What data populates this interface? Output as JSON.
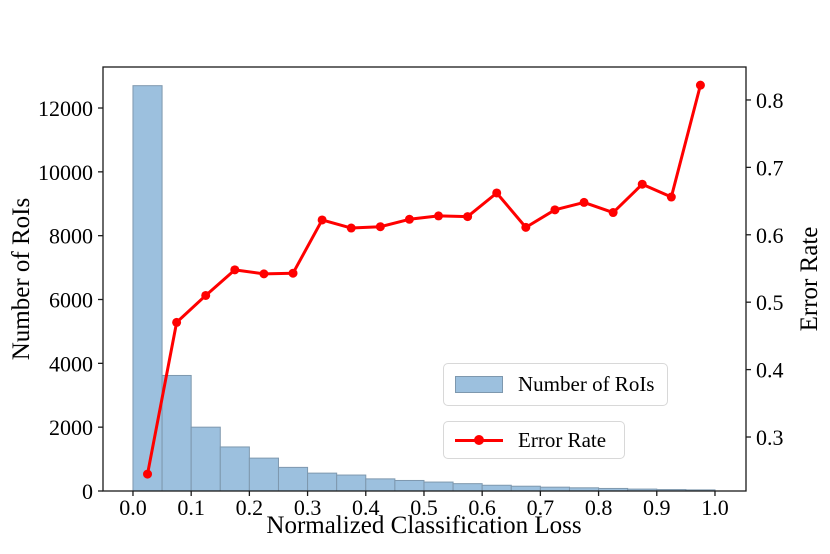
{
  "figure": {
    "xlabel": "Normalized Classification Loss",
    "ylabel_left": "Number of RoIs",
    "ylabel_right": "Error Rate"
  },
  "legend": {
    "hist_label": "Number of RoIs",
    "line_label": "Error Rate"
  },
  "colors": {
    "bar_fill": "#9cc0de",
    "bar_edge": "#7e98ae",
    "line": "#ff0000",
    "spine": "#1a1a1a",
    "tick_text": "#000000",
    "legend_border": "#d8d8d8",
    "background": "#ffffff"
  },
  "chart_data": {
    "type": "bar",
    "subtype": "histogram with overlaid line, dual y-axes",
    "title": "",
    "xlabel": "Normalized Classification Loss",
    "ylabel_left": "Number of RoIs",
    "ylabel_right": "Error Rate",
    "bin_width": 0.05,
    "bin_starts": [
      0.0,
      0.05,
      0.1,
      0.15,
      0.2,
      0.25,
      0.3,
      0.35,
      0.4,
      0.45,
      0.5,
      0.55,
      0.6,
      0.65,
      0.7,
      0.75,
      0.8,
      0.85,
      0.9,
      0.95
    ],
    "bin_centers": [
      0.025,
      0.075,
      0.125,
      0.175,
      0.225,
      0.275,
      0.325,
      0.375,
      0.425,
      0.475,
      0.525,
      0.575,
      0.625,
      0.675,
      0.725,
      0.775,
      0.825,
      0.875,
      0.925,
      0.975
    ],
    "series": [
      {
        "name": "Number of RoIs",
        "type": "bar",
        "axis": "left",
        "values": [
          12700,
          3620,
          2000,
          1380,
          1030,
          740,
          560,
          500,
          380,
          330,
          280,
          230,
          180,
          150,
          120,
          100,
          80,
          60,
          45,
          35
        ]
      },
      {
        "name": "Error Rate",
        "type": "line",
        "axis": "right",
        "marker": "circle",
        "values": [
          0.245,
          0.47,
          0.51,
          0.548,
          0.542,
          0.543,
          0.622,
          0.61,
          0.612,
          0.623,
          0.628,
          0.627,
          0.662,
          0.611,
          0.637,
          0.648,
          0.633,
          0.675,
          0.656,
          0.822
        ]
      }
    ],
    "x_tick_labels": [
      "0.0",
      "0.1",
      "0.2",
      "0.3",
      "0.4",
      "0.5",
      "0.6",
      "0.7",
      "0.8",
      "0.9",
      "1.0"
    ],
    "y_tick_labels_left": [
      "0",
      "2000",
      "4000",
      "6000",
      "8000",
      "10000",
      "12000"
    ],
    "y_tick_labels_right": [
      "0.3",
      "0.4",
      "0.5",
      "0.6",
      "0.7",
      "0.8"
    ],
    "xlim": [
      -0.0515,
      1.0533
    ],
    "ylim_left": [
      0,
      13285
    ],
    "ylim_right": [
      0.2199,
      0.8489
    ],
    "grid": false,
    "legend_position": "lower-right, two stacked boxes"
  }
}
